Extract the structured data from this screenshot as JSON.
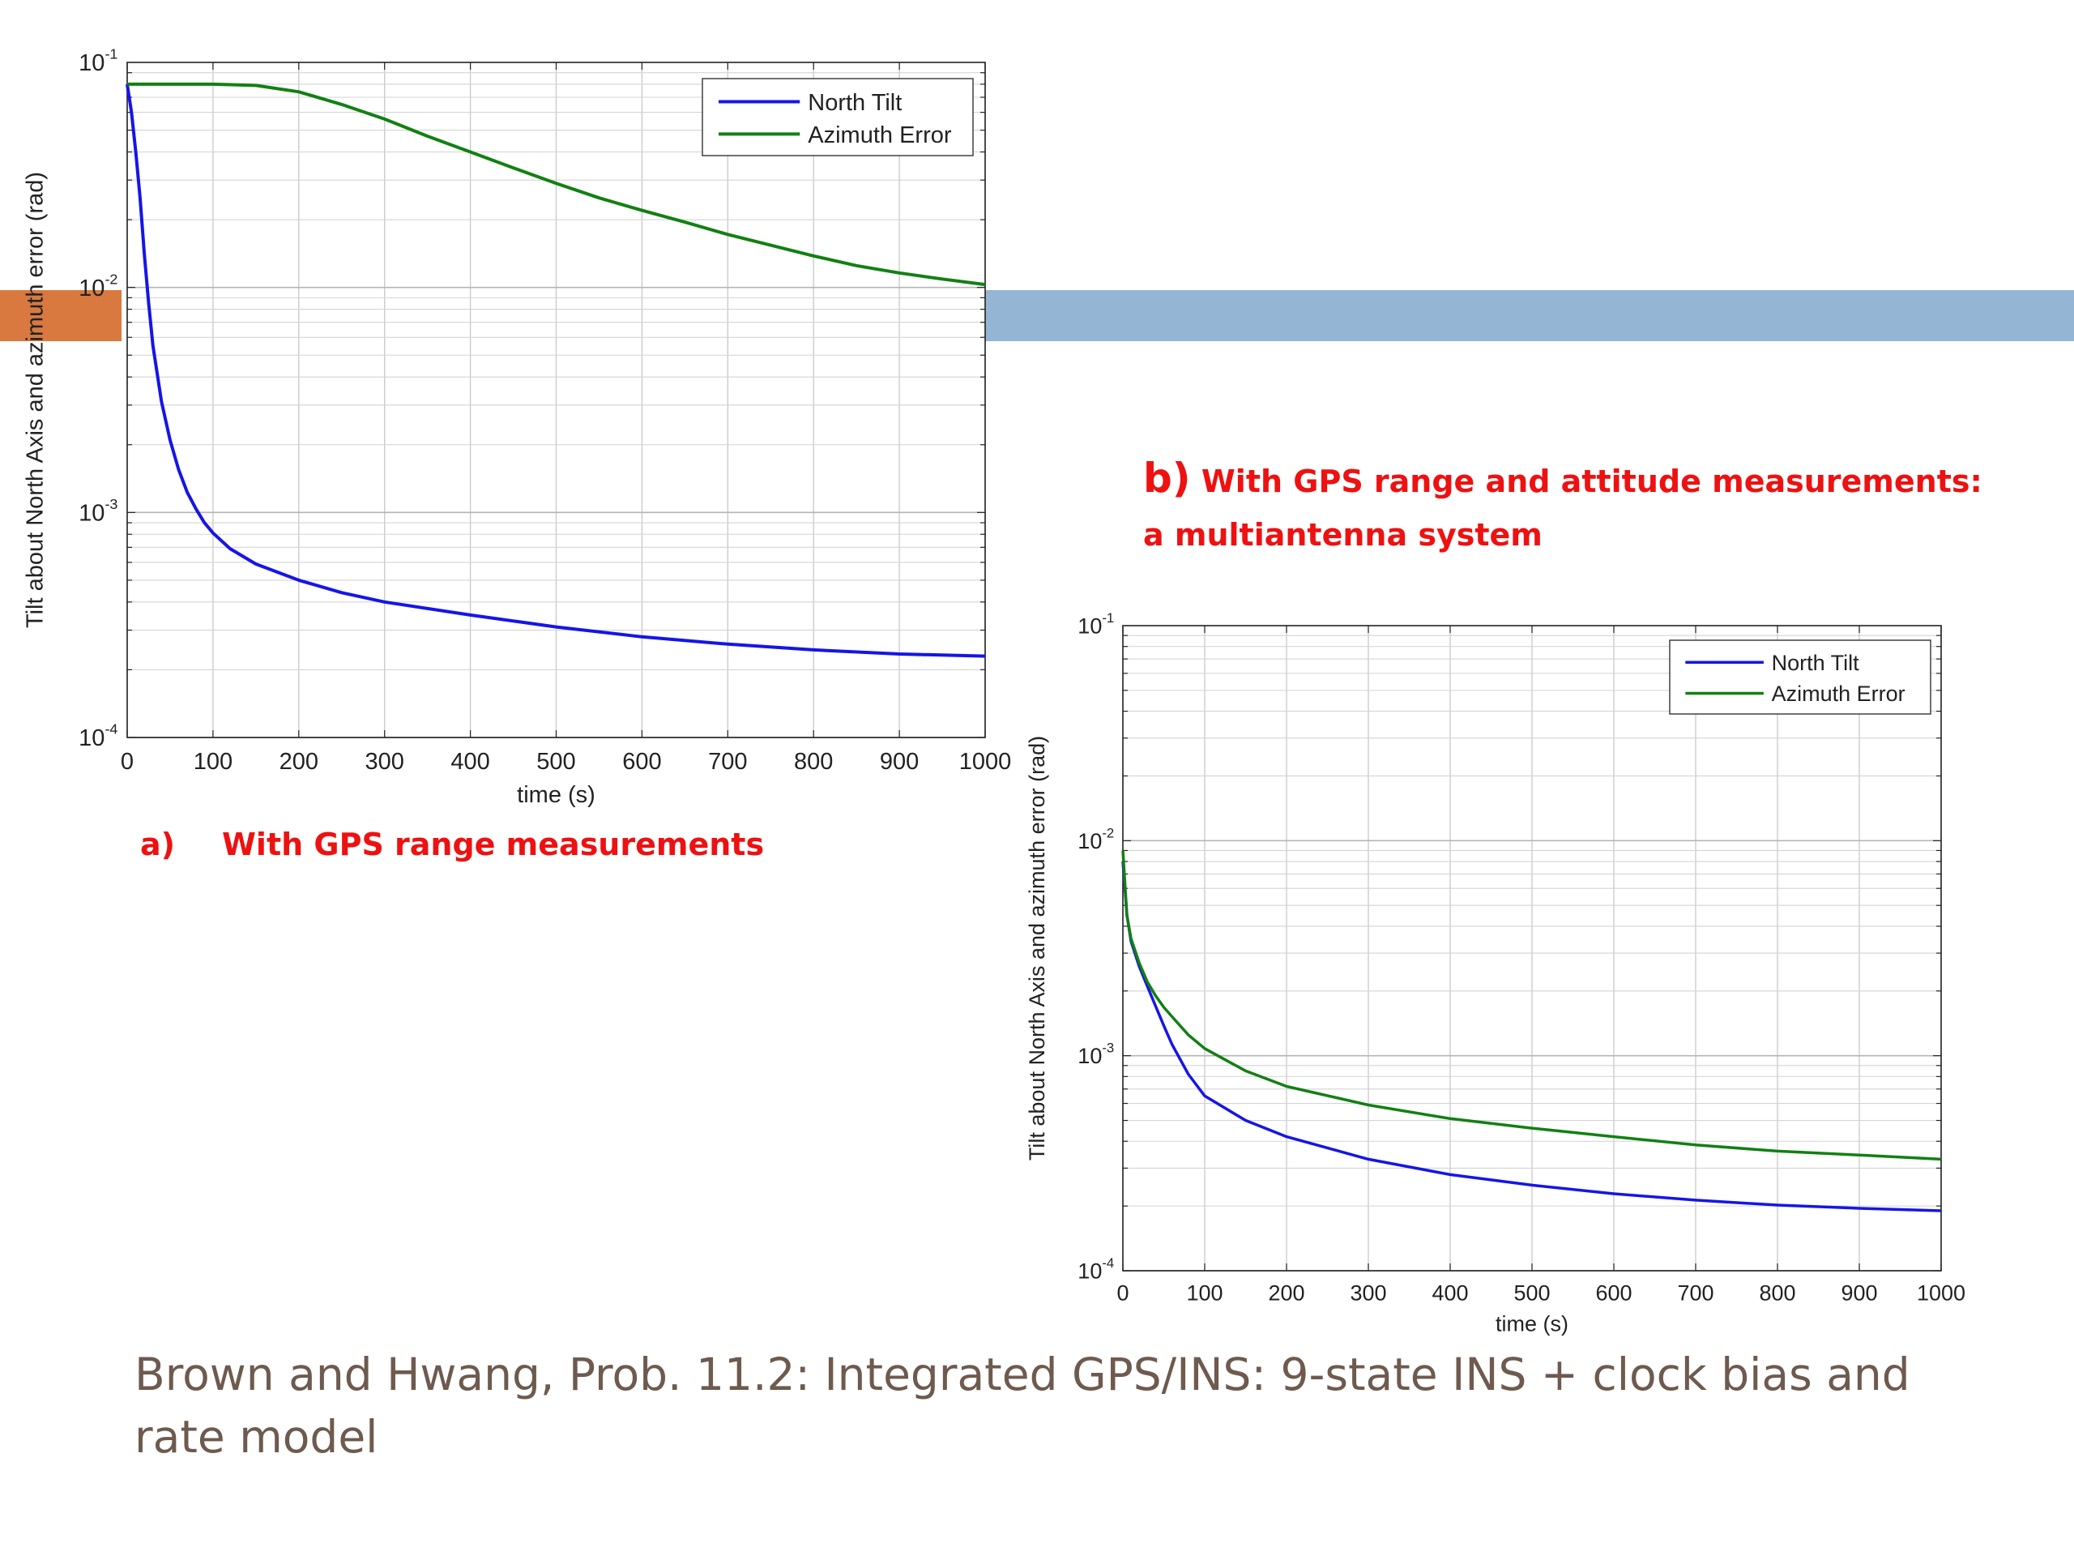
{
  "colors": {
    "orange_band": "#d9793f",
    "blue_band": "#95b5d4",
    "north_tilt": "#1515e8",
    "azimuth_error": "#128012",
    "caption": "#ee1111",
    "footer_text": "#6e5a4e"
  },
  "captions": {
    "a_label": "a)",
    "a_text": "With GPS range measurements",
    "b_label": "b)",
    "b_text_line1": "With GPS range and attitude measurements:",
    "b_text_line2": "a multiantenna system"
  },
  "footer": "Brown and Hwang, Prob. 11.2: Integrated GPS/INS: 9-state INS + clock bias and rate model",
  "chart_data": [
    {
      "type": "line",
      "title": "",
      "xlabel": "time (s)",
      "ylabel": "Tilt about North Axis and azimuth error (rad)",
      "xlim": [
        0,
        1000
      ],
      "ylim": [
        0.0001,
        0.1
      ],
      "yscale": "log",
      "grid": true,
      "legend": "top-right",
      "xticks": [
        "0",
        "100",
        "200",
        "300",
        "400",
        "500",
        "600",
        "700",
        "800",
        "900",
        "1000"
      ],
      "yticks": [
        {
          "base": "10",
          "exp": "-4"
        },
        {
          "base": "10",
          "exp": "-3"
        },
        {
          "base": "10",
          "exp": "-2"
        },
        {
          "base": "10",
          "exp": "-1"
        }
      ],
      "series": [
        {
          "name": "North Tilt",
          "color": "#1515e8",
          "x": [
            0,
            5,
            10,
            15,
            20,
            25,
            30,
            40,
            50,
            60,
            70,
            80,
            90,
            100,
            120,
            150,
            200,
            250,
            300,
            400,
            500,
            600,
            700,
            800,
            900,
            1000
          ],
          "y": [
            0.08,
            0.06,
            0.04,
            0.025,
            0.014,
            0.0085,
            0.0055,
            0.0031,
            0.0021,
            0.00155,
            0.00123,
            0.00104,
            0.0009,
            0.00081,
            0.00069,
            0.00059,
            0.0005,
            0.00044,
            0.0004,
            0.00035,
            0.00031,
            0.00028,
            0.00026,
            0.000245,
            0.000235,
            0.00023
          ]
        },
        {
          "name": "Azimuth Error",
          "color": "#128012",
          "x": [
            0,
            50,
            100,
            150,
            200,
            250,
            300,
            350,
            400,
            450,
            500,
            550,
            600,
            650,
            700,
            750,
            800,
            850,
            900,
            950,
            1000
          ],
          "y": [
            0.08,
            0.08,
            0.08,
            0.079,
            0.074,
            0.065,
            0.056,
            0.047,
            0.04,
            0.034,
            0.029,
            0.025,
            0.022,
            0.0195,
            0.0172,
            0.0154,
            0.0138,
            0.0125,
            0.0116,
            0.0109,
            0.0103
          ]
        }
      ]
    },
    {
      "type": "line",
      "title": "",
      "xlabel": "time (s)",
      "ylabel": "Tilt about North Axis and azimuth error (rad)",
      "xlim": [
        0,
        1000
      ],
      "ylim": [
        0.0001,
        0.1
      ],
      "yscale": "log",
      "grid": true,
      "legend": "top-right",
      "xticks": [
        "0",
        "100",
        "200",
        "300",
        "400",
        "500",
        "600",
        "700",
        "800",
        "900",
        "1000"
      ],
      "yticks": [
        {
          "base": "10",
          "exp": "-4"
        },
        {
          "base": "10",
          "exp": "-3"
        },
        {
          "base": "10",
          "exp": "-2"
        },
        {
          "base": "10",
          "exp": "-1"
        }
      ],
      "series": [
        {
          "name": "North Tilt",
          "color": "#1515e8",
          "x": [
            0,
            5,
            10,
            20,
            30,
            40,
            50,
            60,
            80,
            100,
            150,
            200,
            300,
            400,
            500,
            600,
            700,
            800,
            900,
            1000
          ],
          "y": [
            0.008,
            0.0045,
            0.0034,
            0.0026,
            0.0021,
            0.0017,
            0.00138,
            0.00113,
            0.00082,
            0.00065,
            0.0005,
            0.00042,
            0.00033,
            0.00028,
            0.00025,
            0.000228,
            0.000213,
            0.000202,
            0.000195,
            0.00019
          ]
        },
        {
          "name": "Azimuth Error",
          "color": "#128012",
          "x": [
            0,
            5,
            10,
            20,
            30,
            40,
            50,
            60,
            80,
            100,
            150,
            200,
            300,
            400,
            500,
            600,
            700,
            800,
            900,
            1000
          ],
          "y": [
            0.009,
            0.0045,
            0.0035,
            0.0027,
            0.0022,
            0.0019,
            0.00168,
            0.00152,
            0.00125,
            0.00108,
            0.00085,
            0.00072,
            0.00059,
            0.00051,
            0.00046,
            0.00042,
            0.000385,
            0.00036,
            0.000345,
            0.00033
          ]
        }
      ]
    }
  ]
}
